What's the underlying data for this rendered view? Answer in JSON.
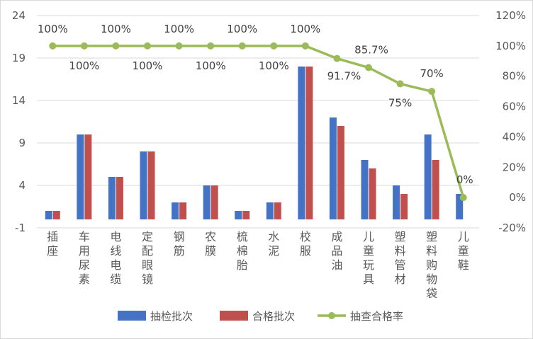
{
  "chart_data": {
    "type": "bar",
    "categories": [
      "插座",
      "车用尿素",
      "电线电缆",
      "定配眼镜",
      "钢筋",
      "农膜",
      "梳棉胎",
      "水泥",
      "校服",
      "成品油",
      "儿童玩具",
      "塑料管材",
      "塑料购物袋",
      "儿童鞋"
    ],
    "series": [
      {
        "name": "抽检批次",
        "type": "bar",
        "axis": "left",
        "color": "#4472C4",
        "values": [
          1,
          10,
          5,
          8,
          2,
          4,
          1,
          2,
          18,
          12,
          7,
          4,
          10,
          3
        ]
      },
      {
        "name": "合格批次",
        "type": "bar",
        "axis": "left",
        "color": "#C0504D",
        "values": [
          1,
          10,
          5,
          8,
          2,
          4,
          1,
          2,
          18,
          11,
          6,
          3,
          7,
          0
        ]
      },
      {
        "name": "抽查合格率",
        "type": "line",
        "axis": "right",
        "color": "#9BBB59",
        "values": [
          100,
          100,
          100,
          100,
          100,
          100,
          100,
          100,
          100,
          91.7,
          85.7,
          75,
          70,
          0
        ]
      }
    ],
    "data_labels": [
      "100%",
      "100%",
      "100%",
      "100%",
      "100%",
      "100%",
      "100%",
      "100%",
      "100%",
      "91.7%",
      "85.7%",
      "75%",
      "70%",
      "0%"
    ],
    "y_left": {
      "min": -1,
      "max": 24,
      "ticks": [
        "-1",
        "4",
        "9",
        "14",
        "19",
        "24"
      ]
    },
    "y_right": {
      "min": -20,
      "max": 120,
      "ticks": [
        "-20%",
        "0%",
        "20%",
        "40%",
        "60%",
        "80%",
        "100%",
        "120%"
      ]
    },
    "grid": true,
    "legend": "bottom"
  }
}
